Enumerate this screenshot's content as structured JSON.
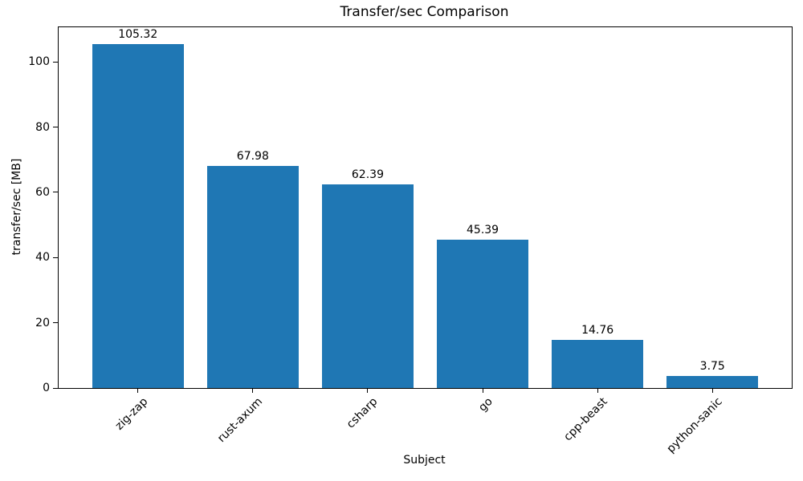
{
  "figure": {
    "background": "#ffffff"
  },
  "chart_data": {
    "type": "bar",
    "title": "Transfer/sec Comparison",
    "xlabel": "Subject",
    "ylabel": "transfer/sec [MB]",
    "categories": [
      "zig-zap",
      "rust-axum",
      "csharp",
      "go",
      "cpp-beast",
      "python-sanic"
    ],
    "values": [
      105.32,
      67.98,
      62.39,
      45.39,
      14.76,
      3.75
    ],
    "bar_labels": [
      "105.32",
      "67.98",
      "62.39",
      "45.39",
      "14.76",
      "3.75"
    ],
    "bar_color": "#1f77b4",
    "axis_color": "#000000",
    "text_color": "#000000",
    "ylim": [
      0,
      110.6
    ],
    "yticks": [
      0,
      20,
      40,
      60,
      80,
      100
    ],
    "grid": false,
    "legend_position": "none"
  }
}
